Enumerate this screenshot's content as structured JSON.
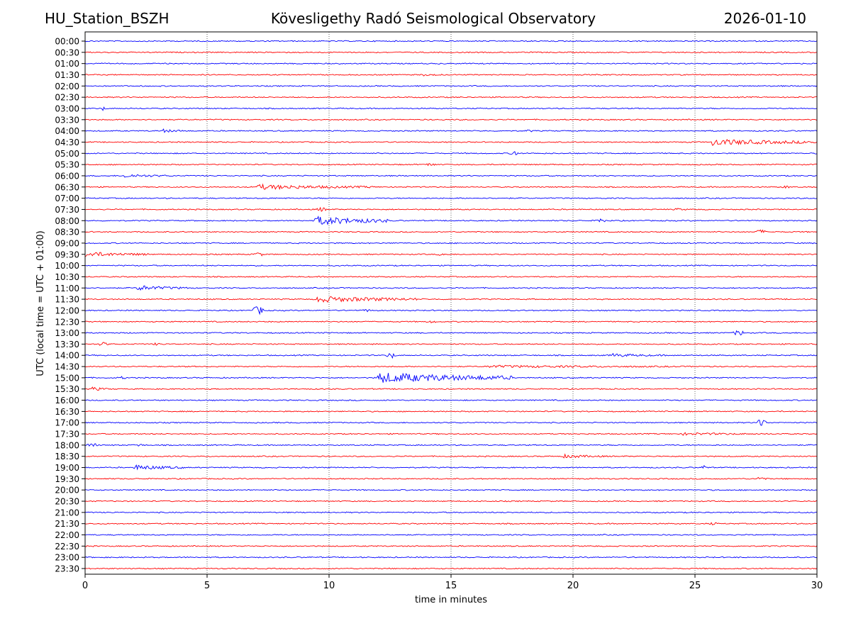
{
  "header": {
    "station": "HU_Station_BSZH",
    "observatory": "Kövesligethy Radó Seismological Observatory",
    "date": "2026-01-10"
  },
  "chart_data": {
    "type": "line",
    "title": "Kövesligethy Radó Seismological Observatory",
    "xlabel": "time in minutes",
    "ylabel": "UTC (local time = UTC + 01:00)",
    "xlim": [
      0,
      30
    ],
    "xticks": [
      0,
      5,
      10,
      15,
      20,
      25,
      30
    ],
    "grid": "vertical dotted lines at 5-minute intervals",
    "colors": {
      "even_row": "#0000ff",
      "odd_row": "#ff0000",
      "grid": "#000000"
    },
    "rows": [
      "00:00",
      "00:30",
      "01:00",
      "01:30",
      "02:00",
      "02:30",
      "03:00",
      "03:30",
      "04:00",
      "04:30",
      "05:00",
      "05:30",
      "06:00",
      "06:30",
      "07:00",
      "07:30",
      "08:00",
      "08:30",
      "09:00",
      "09:30",
      "10:00",
      "10:30",
      "11:00",
      "11:30",
      "12:00",
      "12:30",
      "13:00",
      "13:30",
      "14:00",
      "14:30",
      "15:00",
      "15:30",
      "16:00",
      "16:30",
      "17:00",
      "17:30",
      "18:00",
      "18:30",
      "19:00",
      "19:30",
      "20:00",
      "20:30",
      "21:00",
      "21:30",
      "22:00",
      "22:30",
      "23:00",
      "23:30"
    ],
    "background_amplitude": 0.9,
    "events": [
      {
        "row": "01:30",
        "start": 13.8,
        "end": 14.9,
        "amp": 2
      },
      {
        "row": "03:00",
        "start": 0.6,
        "end": 0.9,
        "amp": 3
      },
      {
        "row": "04:00",
        "start": 3.1,
        "end": 4.2,
        "amp": 3
      },
      {
        "row": "04:00",
        "start": 18.0,
        "end": 18.4,
        "amp": 2
      },
      {
        "row": "04:30",
        "start": 25.7,
        "end": 30.0,
        "amp": 5
      },
      {
        "row": "05:00",
        "start": 17.4,
        "end": 17.8,
        "amp": 5
      },
      {
        "row": "05:30",
        "start": 13.8,
        "end": 14.5,
        "amp": 2
      },
      {
        "row": "06:00",
        "start": 1.6,
        "end": 3.6,
        "amp": 3
      },
      {
        "row": "06:30",
        "start": 7.0,
        "end": 11.8,
        "amp": 4
      },
      {
        "row": "06:30",
        "start": 28.5,
        "end": 29.0,
        "amp": 2
      },
      {
        "row": "07:30",
        "start": 9.4,
        "end": 10.0,
        "amp": 3
      },
      {
        "row": "07:30",
        "start": 24.2,
        "end": 25.0,
        "amp": 2
      },
      {
        "row": "08:00",
        "start": 9.4,
        "end": 12.4,
        "amp": 7
      },
      {
        "row": "08:00",
        "start": 20.9,
        "end": 21.4,
        "amp": 4
      },
      {
        "row": "08:30",
        "start": 27.4,
        "end": 28.0,
        "amp": 3
      },
      {
        "row": "09:30",
        "start": 0.0,
        "end": 2.6,
        "amp": 4
      },
      {
        "row": "09:30",
        "start": 6.8,
        "end": 7.4,
        "amp": 3
      },
      {
        "row": "09:30",
        "start": 14.3,
        "end": 15.0,
        "amp": 2
      },
      {
        "row": "11:00",
        "start": 2.1,
        "end": 4.2,
        "amp": 4
      },
      {
        "row": "11:30",
        "start": 9.5,
        "end": 13.6,
        "amp": 5
      },
      {
        "row": "12:00",
        "start": 6.8,
        "end": 7.4,
        "amp": 6
      },
      {
        "row": "12:00",
        "start": 11.3,
        "end": 11.8,
        "amp": 2
      },
      {
        "row": "12:30",
        "start": 13.9,
        "end": 14.5,
        "amp": 2
      },
      {
        "row": "13:00",
        "start": 26.5,
        "end": 27.1,
        "amp": 4
      },
      {
        "row": "13:30",
        "start": 0.5,
        "end": 1.0,
        "amp": 3
      },
      {
        "row": "13:30",
        "start": 2.8,
        "end": 3.6,
        "amp": 2
      },
      {
        "row": "14:00",
        "start": 12.3,
        "end": 12.8,
        "amp": 4
      },
      {
        "row": "14:00",
        "start": 21.5,
        "end": 23.8,
        "amp": 3
      },
      {
        "row": "14:30",
        "start": 16.5,
        "end": 29.5,
        "amp": 2
      },
      {
        "row": "15:00",
        "start": 12.0,
        "end": 17.5,
        "amp": 8
      },
      {
        "row": "15:00",
        "start": 1.2,
        "end": 1.8,
        "amp": 2
      },
      {
        "row": "15:30",
        "start": 0.3,
        "end": 1.1,
        "amp": 3
      },
      {
        "row": "17:00",
        "start": 27.5,
        "end": 28.0,
        "amp": 6
      },
      {
        "row": "17:30",
        "start": 24.5,
        "end": 29.5,
        "amp": 2
      },
      {
        "row": "18:00",
        "start": 0.0,
        "end": 0.6,
        "amp": 3
      },
      {
        "row": "18:00",
        "start": 2.0,
        "end": 2.4,
        "amp": 3
      },
      {
        "row": "18:30",
        "start": 19.6,
        "end": 21.5,
        "amp": 3
      },
      {
        "row": "19:00",
        "start": 2.0,
        "end": 4.1,
        "amp": 4
      },
      {
        "row": "19:00",
        "start": 25.2,
        "end": 25.6,
        "amp": 3
      },
      {
        "row": "19:30",
        "start": 27.4,
        "end": 28.0,
        "amp": 3
      },
      {
        "row": "21:30",
        "start": 25.5,
        "end": 26.0,
        "amp": 2
      }
    ]
  }
}
